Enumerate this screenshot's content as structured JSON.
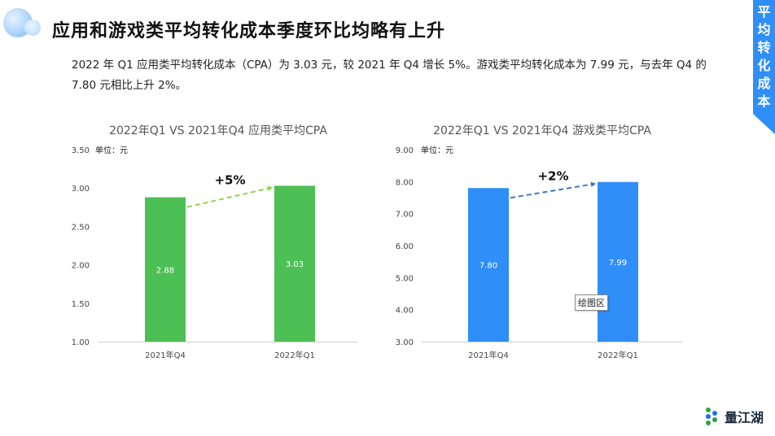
{
  "page": {
    "title": "应用和游戏类平均转化成本季度环比均略有上升",
    "description": "2022 年 Q1 应用类平均转化成本（CPA）为 3.03 元，较 2021 年 Q4 增长 5%。游戏类平均转化成本为 7.99 元，与去年 Q4 的 7.80 元相比上升 2%。",
    "side_tab": [
      "平",
      "均",
      "转",
      "化",
      "成",
      "本"
    ],
    "logo_text": "量江湖",
    "tooltip": "绘图区",
    "accent_color": "#2f8ef7"
  },
  "chart_data": [
    {
      "type": "bar",
      "title": "2022年Q1 VS 2021年Q4 应用类平均CPA",
      "unit_label": "单位：元",
      "categories": [
        "2021年Q4",
        "2022年Q1"
      ],
      "values": [
        2.88,
        3.03
      ],
      "value_labels": [
        "2.88",
        "3.03"
      ],
      "ylim": [
        1.0,
        3.5
      ],
      "yticks": [
        "1.00",
        "1.50",
        "2.00",
        "2.50",
        "3.00",
        "3.50"
      ],
      "bar_color": "#4cbf55",
      "growth_label": "+5%",
      "arrow_color": "#8fd44a",
      "grid": false
    },
    {
      "type": "bar",
      "title": "2022年Q1 VS 2021年Q4 游戏类平均CPA",
      "unit_label": "单位：元",
      "categories": [
        "2021年Q4",
        "2022年Q1"
      ],
      "values": [
        7.8,
        7.99
      ],
      "value_labels": [
        "7.80",
        "7.99"
      ],
      "ylim": [
        3.0,
        9.0
      ],
      "yticks": [
        "3.00",
        "4.00",
        "5.00",
        "6.00",
        "7.00",
        "8.00",
        "9.00"
      ],
      "bar_color": "#2f8ef7",
      "growth_label": "+2%",
      "arrow_color": "#3a78c9",
      "grid": false
    }
  ]
}
